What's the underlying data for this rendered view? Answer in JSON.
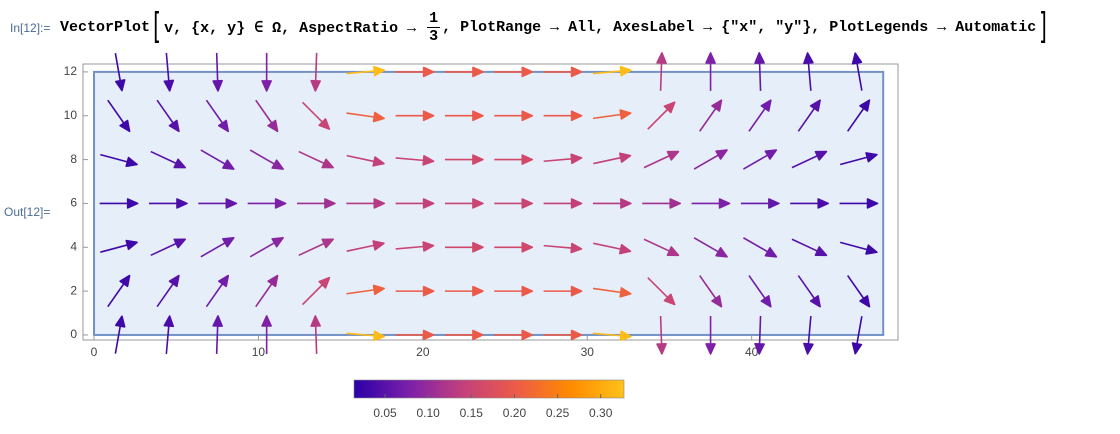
{
  "input": {
    "label": "In[12]:=",
    "head": "VectorPlot",
    "open": "[",
    "args_before": "v, {x, y} ∈ Ω, AspectRatio → ",
    "fraction": {
      "numerator": "1",
      "denominator": "3"
    },
    "args_after": ", PlotRange → All, AxesLabel → {\"x\", \"y\"}, PlotLegends → Automatic",
    "close": "]"
  },
  "output": {
    "label": "Out[12]="
  },
  "chart_data": {
    "type": "vector",
    "xlim": [
      -0.67,
      48.9
    ],
    "ylim": [
      -0.23,
      12.36
    ],
    "xticks": [
      0,
      10,
      20,
      30,
      40
    ],
    "yticks": [
      0,
      2,
      4,
      6,
      8,
      10,
      12
    ],
    "region": {
      "xlim": [
        0,
        48
      ],
      "ylim": [
        0,
        12
      ],
      "fill": "#e6eefa",
      "stroke": "#7391c4"
    },
    "colormap": [
      "#2a00a8",
      "#7a1faa",
      "#c2407c",
      "#ec5b48",
      "#ff8a00",
      "#ffc21a"
    ],
    "legend": {
      "lim": [
        0.014,
        0.327
      ],
      "ticks": [
        0.05,
        {
          "value": 0.1,
          "label": "0.10"
        },
        0.15,
        {
          "value": 0.2,
          "label": "0.20"
        },
        0.25,
        {
          "value": 0.3,
          "label": "0.30"
        }
      ]
    },
    "field": {
      "x": [
        1.5,
        4.5,
        7.5,
        10.5,
        13.5,
        16.5,
        19.5,
        22.5,
        25.5,
        28.5,
        31.5,
        34.5,
        37.5,
        40.5,
        43.5,
        46.5
      ],
      "rows": [
        {
          "y": 0,
          "angles": [
            80,
            85,
            88,
            90,
            92,
            -5,
            0,
            0,
            0,
            0,
            -5,
            -88,
            -90,
            -92,
            -95,
            -100
          ],
          "magnitudes": [
            0.03,
            0.04,
            0.06,
            0.08,
            0.13,
            0.32,
            0.2,
            0.2,
            0.2,
            0.2,
            0.32,
            0.13,
            0.08,
            0.06,
            0.04,
            0.03
          ]
        },
        {
          "y": 2,
          "angles": [
            55,
            55,
            55,
            55,
            45,
            8,
            0,
            0,
            0,
            0,
            -8,
            -45,
            -55,
            -55,
            -55,
            -55
          ],
          "magnitudes": [
            0.03,
            0.05,
            0.07,
            0.1,
            0.15,
            0.21,
            0.2,
            0.2,
            0.2,
            0.2,
            0.21,
            0.15,
            0.1,
            0.07,
            0.05,
            0.03
          ]
        },
        {
          "y": 4,
          "angles": [
            15,
            25,
            30,
            30,
            25,
            12,
            5,
            0,
            0,
            -5,
            -12,
            -25,
            -30,
            -30,
            -25,
            -15
          ],
          "magnitudes": [
            0.03,
            0.05,
            0.07,
            0.09,
            0.12,
            0.14,
            0.15,
            0.16,
            0.16,
            0.15,
            0.14,
            0.12,
            0.09,
            0.07,
            0.05,
            0.03
          ]
        },
        {
          "y": 6,
          "angles": [
            0,
            0,
            0,
            0,
            0,
            0,
            0,
            0,
            0,
            0,
            0,
            0,
            0,
            0,
            0,
            0
          ],
          "magnitudes": [
            0.03,
            0.04,
            0.06,
            0.08,
            0.11,
            0.13,
            0.14,
            0.15,
            0.15,
            0.14,
            0.13,
            0.11,
            0.08,
            0.06,
            0.04,
            0.03
          ]
        },
        {
          "y": 8,
          "angles": [
            -15,
            -25,
            -30,
            -30,
            -25,
            -12,
            -5,
            0,
            0,
            5,
            12,
            25,
            30,
            30,
            25,
            15
          ],
          "magnitudes": [
            0.03,
            0.05,
            0.07,
            0.09,
            0.12,
            0.14,
            0.15,
            0.16,
            0.16,
            0.15,
            0.14,
            0.12,
            0.09,
            0.07,
            0.05,
            0.03
          ]
        },
        {
          "y": 10,
          "angles": [
            -55,
            -55,
            -55,
            -55,
            -45,
            -8,
            0,
            0,
            0,
            0,
            8,
            45,
            55,
            55,
            55,
            55
          ],
          "magnitudes": [
            0.03,
            0.05,
            0.07,
            0.1,
            0.15,
            0.21,
            0.2,
            0.2,
            0.2,
            0.2,
            0.21,
            0.15,
            0.1,
            0.07,
            0.05,
            0.03
          ]
        },
        {
          "y": 12,
          "angles": [
            -80,
            -85,
            -88,
            -90,
            -92,
            5,
            0,
            0,
            0,
            0,
            5,
            88,
            90,
            92,
            95,
            100
          ],
          "magnitudes": [
            0.03,
            0.04,
            0.06,
            0.08,
            0.13,
            0.32,
            0.2,
            0.2,
            0.2,
            0.2,
            0.32,
            0.13,
            0.08,
            0.06,
            0.04,
            0.03
          ]
        }
      ]
    }
  }
}
